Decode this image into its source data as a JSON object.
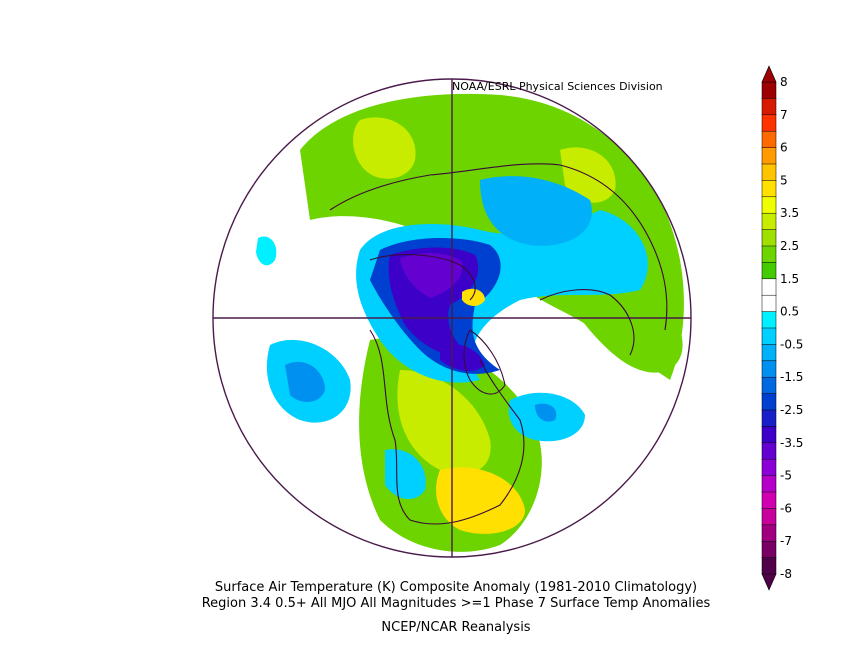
{
  "credit": "NOAA/ESRL Physical Sciences Division",
  "caption": {
    "line1": "Surface Air Temperature (K) Composite Anomaly (1981-2010 Climatology)",
    "line2": "Region 3.4 0.5+ All MJO All Magnitudes  >=1 Phase 7 Surface Temp  Anomalies",
    "line3": "NCEP/NCAR Reanalysis"
  },
  "colorbar": {
    "labels": [
      "8",
      "7",
      "6",
      "5",
      "3.5",
      "2.5",
      "1.5",
      "0.5",
      "-0.5",
      "-1.5",
      "-2.5",
      "-3.5",
      "-5",
      "-6",
      "-7",
      "-8"
    ],
    "colors": [
      "#9c0000",
      "#d51a00",
      "#ff3300",
      "#ff6a00",
      "#ff9a00",
      "#ffc400",
      "#ffe000",
      "#f0ff00",
      "#c8ec00",
      "#a0e000",
      "#6ed400",
      "#44cc00",
      "#ffffff",
      "#ffffff",
      "#00f0ff",
      "#00d0ff",
      "#00b0f8",
      "#0090f0",
      "#0068e0",
      "#0040d0",
      "#1820c8",
      "#3c00c8",
      "#6400d0",
      "#8c00d8",
      "#b400c8",
      "#d000b0",
      "#c8009c",
      "#a00080",
      "#780064",
      "#500048"
    ]
  },
  "map": {
    "projection": "north-polar-stereographic",
    "variable": "surface-air-temperature-anomaly"
  }
}
